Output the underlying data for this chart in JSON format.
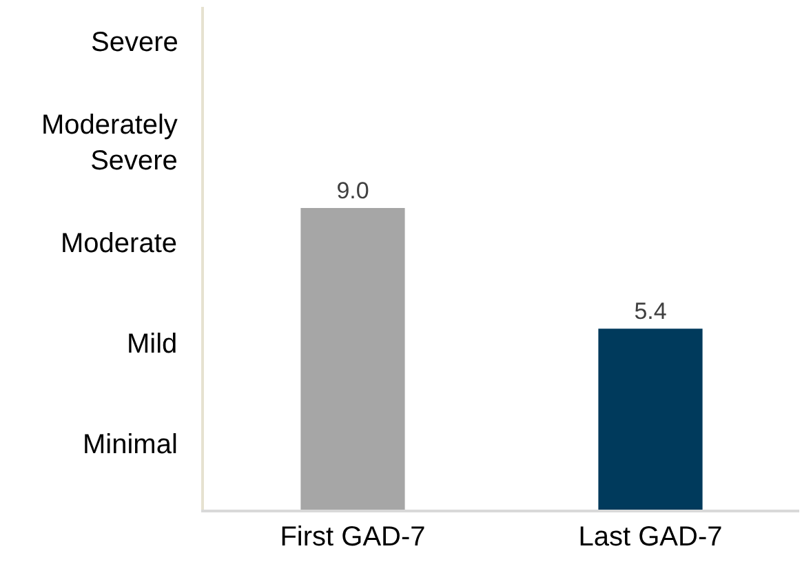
{
  "chart_data": {
    "type": "bar",
    "categories": [
      "First GAD-7",
      "Last GAD-7"
    ],
    "values": [
      9.0,
      5.4
    ],
    "colors": [
      "#a6a6a6",
      "#003a5c"
    ],
    "value_labels": [
      "9.0",
      "5.4"
    ],
    "annotations": [
      "Minimal",
      "Mild",
      "Moderate",
      "Moderately Severe",
      "Severe"
    ],
    "ylim": [
      0,
      15
    ],
    "grid": false
  }
}
